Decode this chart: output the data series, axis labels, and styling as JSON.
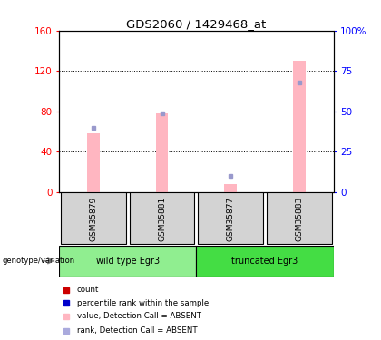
{
  "title": "GDS2060 / 1429468_at",
  "samples": [
    "GSM35879",
    "GSM35881",
    "GSM35877",
    "GSM35883"
  ],
  "group_labels": [
    "wild type Egr3",
    "truncated Egr3"
  ],
  "group_sample_counts": [
    2,
    2
  ],
  "group_colors": [
    "#90EE90",
    "#44DD44"
  ],
  "value_bars": [
    58,
    78,
    8,
    130
  ],
  "rank_dots_pct": [
    40,
    49,
    10,
    68
  ],
  "bar_color": "#FFB6C1",
  "dot_color": "#9999CC",
  "ylim_left": [
    0,
    160
  ],
  "ylim_right": [
    0,
    100
  ],
  "yticks_left": [
    0,
    40,
    80,
    120,
    160
  ],
  "yticks_right": [
    0,
    25,
    50,
    75,
    100
  ],
  "yticklabels_left": [
    "0",
    "40",
    "80",
    "120",
    "160"
  ],
  "yticklabels_right": [
    "0",
    "25",
    "50",
    "75",
    "100%"
  ],
  "bg_color": "#FFFFFF",
  "sample_bg": "#D3D3D3",
  "legend_colors": [
    "#CC0000",
    "#0000CC",
    "#FFB6C1",
    "#AAAADD"
  ],
  "legend_labels": [
    "count",
    "percentile rank within the sample",
    "value, Detection Call = ABSENT",
    "rank, Detection Call = ABSENT"
  ]
}
